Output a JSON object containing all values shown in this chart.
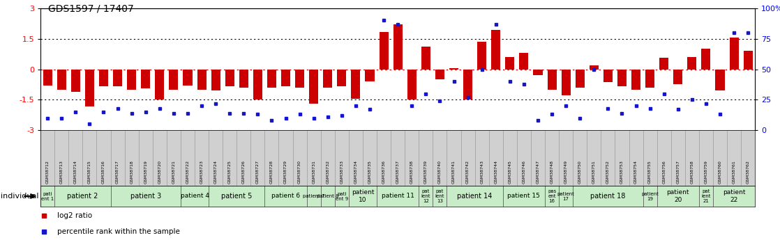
{
  "title": "GDS1597 / 17407",
  "samples": [
    "GSM38712",
    "GSM38713",
    "GSM38714",
    "GSM38715",
    "GSM38716",
    "GSM38717",
    "GSM38718",
    "GSM38719",
    "GSM38720",
    "GSM38721",
    "GSM38722",
    "GSM38723",
    "GSM38724",
    "GSM38725",
    "GSM38726",
    "GSM38727",
    "GSM38728",
    "GSM38729",
    "GSM38730",
    "GSM38731",
    "GSM38732",
    "GSM38733",
    "GSM38734",
    "GSM38735",
    "GSM38736",
    "GSM38737",
    "GSM38738",
    "GSM38739",
    "GSM38740",
    "GSM38741",
    "GSM38742",
    "GSM38743",
    "GSM38744",
    "GSM38745",
    "GSM38746",
    "GSM38747",
    "GSM38748",
    "GSM38749",
    "GSM38750",
    "GSM38751",
    "GSM38752",
    "GSM38753",
    "GSM38754",
    "GSM38755",
    "GSM38756",
    "GSM38757",
    "GSM38758",
    "GSM38759",
    "GSM38760",
    "GSM38761",
    "GSM38762"
  ],
  "log2_ratio": [
    -0.8,
    -1.0,
    -1.1,
    -1.85,
    -0.85,
    -0.85,
    -1.0,
    -0.95,
    -1.5,
    -1.0,
    -0.8,
    -1.0,
    -1.05,
    -0.85,
    -0.9,
    -1.5,
    -0.9,
    -0.85,
    -0.9,
    -1.7,
    -0.9,
    -0.85,
    -1.45,
    -0.6,
    1.85,
    2.2,
    -1.5,
    1.1,
    -0.5,
    0.05,
    -1.5,
    1.35,
    1.95,
    0.6,
    0.8,
    -0.3,
    -1.0,
    -1.3,
    -0.9,
    0.2,
    -0.65,
    -0.85,
    -1.0,
    -0.9,
    0.55,
    -0.75,
    0.6,
    1.0,
    -1.05,
    1.55,
    0.9
  ],
  "percentile": [
    10,
    10,
    15,
    5,
    15,
    18,
    14,
    15,
    18,
    14,
    14,
    20,
    22,
    14,
    14,
    13,
    8,
    10,
    13,
    10,
    11,
    12,
    20,
    17,
    90,
    87,
    20,
    30,
    24,
    40,
    27,
    50,
    87,
    40,
    38,
    8,
    13,
    20,
    10,
    50,
    18,
    14,
    20,
    18,
    30,
    17,
    25,
    22,
    13,
    80,
    80
  ],
  "patients": [
    {
      "label": "pati\nent 1",
      "start": 0,
      "end": 0
    },
    {
      "label": "patient 2",
      "start": 1,
      "end": 4
    },
    {
      "label": "patient 3",
      "start": 5,
      "end": 9
    },
    {
      "label": "patient 4",
      "start": 10,
      "end": 11
    },
    {
      "label": "patient 5",
      "start": 12,
      "end": 15
    },
    {
      "label": "patient 6",
      "start": 16,
      "end": 18
    },
    {
      "label": "patient 7",
      "start": 19,
      "end": 19
    },
    {
      "label": "patient 8",
      "start": 20,
      "end": 20
    },
    {
      "label": "pati\nent 9",
      "start": 21,
      "end": 21
    },
    {
      "label": "patient\n10",
      "start": 22,
      "end": 23
    },
    {
      "label": "patient 11",
      "start": 24,
      "end": 26
    },
    {
      "label": "pat\nient\n12",
      "start": 27,
      "end": 27
    },
    {
      "label": "pat\nient\n13",
      "start": 28,
      "end": 28
    },
    {
      "label": "patient 14",
      "start": 29,
      "end": 32
    },
    {
      "label": "patient 15",
      "start": 33,
      "end": 35
    },
    {
      "label": "pas\nent\n16",
      "start": 36,
      "end": 36
    },
    {
      "label": "patient\n17",
      "start": 37,
      "end": 37
    },
    {
      "label": "patient 18",
      "start": 38,
      "end": 42
    },
    {
      "label": "patient\n19",
      "start": 43,
      "end": 43
    },
    {
      "label": "patient\n20",
      "start": 44,
      "end": 46
    },
    {
      "label": "pat\nient\n21",
      "start": 47,
      "end": 47
    },
    {
      "label": "patient\n22",
      "start": 48,
      "end": 50
    }
  ],
  "ylim": [
    -3.0,
    3.0
  ],
  "yticks_left": [
    -3,
    -1.5,
    0,
    1.5,
    3
  ],
  "yticks_right_pct": [
    0,
    25,
    50,
    75,
    100
  ],
  "bar_color": "#cc0000",
  "dot_color": "#1515cc",
  "bg_color": "#ffffff",
  "gsm_bg": "#d0d0d0",
  "pat_bg": "#c8ecc8",
  "hline_dotted": [
    1.5,
    -1.5
  ],
  "zero_line_color": "#dd0000"
}
